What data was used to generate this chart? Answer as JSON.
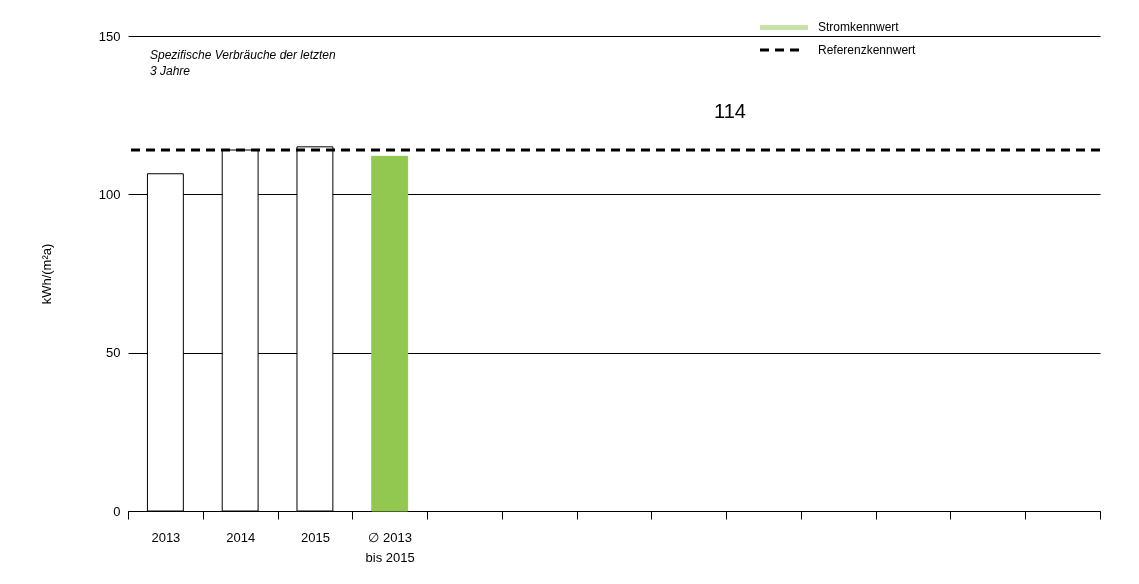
{
  "chart_data": {
    "type": "bar",
    "categories": [
      "2013",
      "2014",
      "2015",
      "∅ 2013\nbis 2015",
      null,
      null,
      null,
      null,
      null,
      null,
      null,
      null,
      null
    ],
    "series": [
      {
        "name": "Stromkennwert",
        "color": "#92c850",
        "colors": [
          "#ffffff",
          "#ffffff",
          "#ffffff",
          "#92c850",
          null,
          null,
          null,
          null,
          null,
          null,
          null,
          null,
          null
        ],
        "values": [
          106.5,
          114,
          115,
          112,
          null,
          null,
          null,
          null,
          null,
          null,
          null,
          null,
          null
        ]
      }
    ],
    "ylabel": "kWh/(m²a)",
    "ylim": [
      0,
      150
    ],
    "yticks": [
      0,
      50,
      100,
      150
    ],
    "grid": "y",
    "legend": "top right",
    "ref_lines": [
      {
        "axis": "y",
        "value": 114,
        "label": "Referenzkennwert",
        "color": "#000000",
        "line_style": "dashed"
      }
    ],
    "annotations": [
      "Spezifische Verbräuche der letzten 3 Jahre",
      {
        "text": "114",
        "y": 114
      }
    ]
  }
}
